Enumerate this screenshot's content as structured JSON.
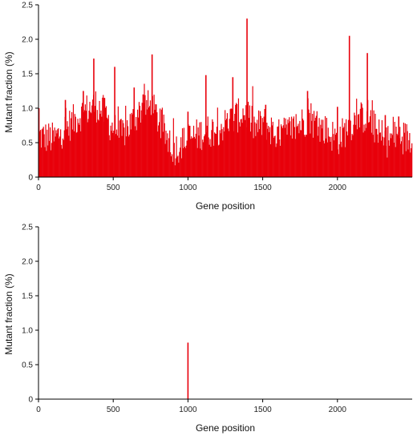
{
  "colors": {
    "bar": "#e8000b",
    "axis": "#000000"
  },
  "chart_data": [
    {
      "type": "bar",
      "xlabel": "Gene position",
      "ylabel": "Mutant fraction (%)",
      "xlim": [
        0,
        2500
      ],
      "ylim": [
        0,
        2.5
      ],
      "xticks": [
        0,
        500,
        1000,
        1500,
        2000
      ],
      "yticks": [
        0,
        0.5,
        1.0,
        1.5,
        2.0,
        2.5
      ],
      "ytick_labels": [
        "0",
        "0.5",
        "1.0",
        "1.5",
        "2.0",
        "2.5"
      ],
      "baseline_profile": {
        "x": [
          0,
          100,
          200,
          300,
          380,
          430,
          480,
          550,
          640,
          700,
          760,
          850,
          900,
          1000,
          1100,
          1200,
          1300,
          1380,
          1450,
          1500,
          1600,
          1700,
          1800,
          1900,
          2000,
          2100,
          2200,
          2300,
          2400,
          2490
        ],
        "y": [
          0.6,
          0.55,
          0.75,
          0.95,
          1.05,
          0.95,
          0.75,
          0.6,
          0.85,
          1.05,
          1.0,
          0.6,
          0.4,
          0.55,
          0.65,
          0.7,
          0.85,
          0.95,
          0.7,
          0.8,
          0.6,
          0.7,
          0.85,
          0.7,
          0.55,
          0.8,
          0.9,
          0.5,
          0.6,
          0.55
        ]
      },
      "peaks": [
        {
          "x": 3,
          "y": 1.0
        },
        {
          "x": 180,
          "y": 1.12
        },
        {
          "x": 300,
          "y": 1.25
        },
        {
          "x": 370,
          "y": 1.72
        },
        {
          "x": 440,
          "y": 1.15
        },
        {
          "x": 510,
          "y": 1.6
        },
        {
          "x": 640,
          "y": 1.3
        },
        {
          "x": 700,
          "y": 1.2
        },
        {
          "x": 760,
          "y": 1.78
        },
        {
          "x": 1000,
          "y": 0.95
        },
        {
          "x": 1120,
          "y": 1.48
        },
        {
          "x": 1300,
          "y": 1.45
        },
        {
          "x": 1395,
          "y": 2.3
        },
        {
          "x": 1520,
          "y": 1.05
        },
        {
          "x": 1800,
          "y": 1.25
        },
        {
          "x": 2000,
          "y": 1.02
        },
        {
          "x": 2080,
          "y": 2.05
        },
        {
          "x": 2200,
          "y": 1.8
        },
        {
          "x": 2320,
          "y": 0.9
        },
        {
          "x": 2410,
          "y": 0.88
        }
      ]
    },
    {
      "type": "bar",
      "xlabel": "Gene position",
      "ylabel": "Mutant fraction (%)",
      "xlim": [
        0,
        2500
      ],
      "ylim": [
        0,
        2.5
      ],
      "xticks": [
        0,
        500,
        1000,
        1500,
        2000
      ],
      "yticks": [
        0,
        0.5,
        1.0,
        1.5,
        2.0,
        2.5
      ],
      "ytick_labels": [
        "0",
        "0.5",
        "1.0",
        "1.5",
        "2.0",
        "2.5"
      ],
      "bars": [
        {
          "x": 1000,
          "y": 0.82
        }
      ]
    }
  ]
}
